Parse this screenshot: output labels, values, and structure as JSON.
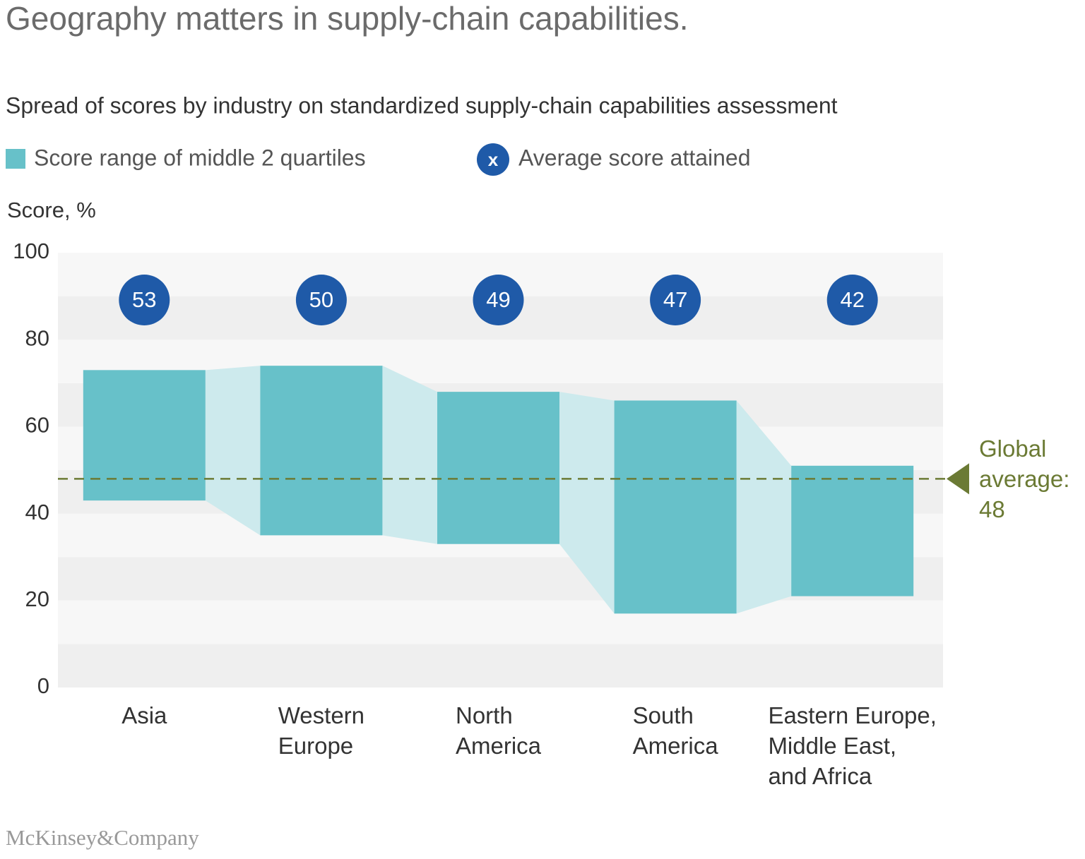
{
  "chart_data": {
    "type": "range",
    "title": "Geography matters in supply-chain capabilities.",
    "subtitle": "Spread of scores by industry on standardized supply-chain capabilities assessment",
    "y_label": "Score, %",
    "categories": [
      "Asia",
      "Western\nEurope",
      "North\nAmerica",
      "South\nAmerica",
      "Eastern Europe,\nMiddle East,\nand Africa"
    ],
    "series": [
      {
        "name": "Score range of middle 2 quartiles",
        "color": "#67c1c9",
        "connector_color": "#cdeaed",
        "low": [
          43,
          35,
          33,
          17,
          21
        ],
        "high": [
          73,
          74,
          68,
          66,
          51
        ]
      },
      {
        "name": "Average score attained",
        "marker_label": "x",
        "color": "#1f5aa8",
        "values": [
          53,
          50,
          49,
          47,
          42
        ]
      }
    ],
    "global_average": {
      "label": "Global\naverage:",
      "value": 48,
      "color": "#6b7a34"
    },
    "ylim": [
      0,
      100
    ],
    "yticks": [
      0,
      20,
      40,
      60,
      80,
      100
    ],
    "source": "McKinsey&Company"
  }
}
